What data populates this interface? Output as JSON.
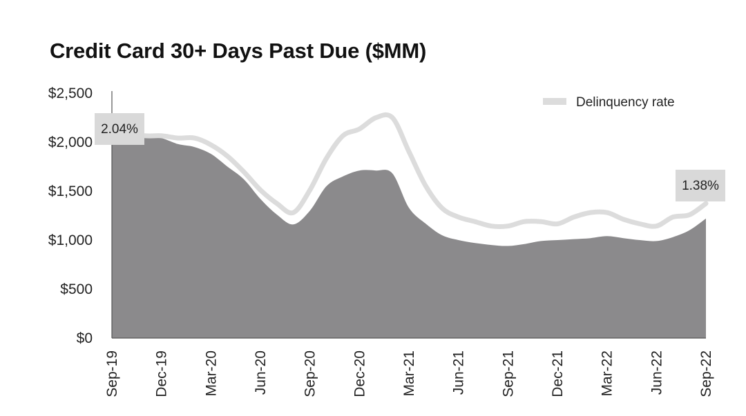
{
  "chart_data": {
    "type": "area",
    "title": "Credit Card 30+ Days Past Due ($MM)",
    "ylabel": "",
    "xlabel": "",
    "ylim": [
      0,
      2500
    ],
    "y_ticks": [
      "$0",
      "$500",
      "$1,000",
      "$1,500",
      "$2,000",
      "$2,500"
    ],
    "y_tick_values": [
      0,
      500,
      1000,
      1500,
      2000,
      2500
    ],
    "x_tick_labels": [
      "Sep-19",
      "Dec-19",
      "Mar-20",
      "Jun-20",
      "Sep-20",
      "Dec-20",
      "Mar-21",
      "Jun-21",
      "Sep-21",
      "Dec-21",
      "Mar-22",
      "Jun-22",
      "Sep-22"
    ],
    "series": [
      {
        "kind": "area",
        "months": [
          "Sep-19",
          "Oct-19",
          "Nov-19",
          "Dec-19",
          "Jan-20",
          "Feb-20",
          "Mar-20",
          "Apr-20",
          "May-20",
          "Jun-20",
          "Jul-20",
          "Aug-20",
          "Sep-20",
          "Oct-20",
          "Nov-20",
          "Dec-20",
          "Jan-21",
          "Feb-21",
          "Mar-21",
          "Apr-21",
          "May-21",
          "Jun-21",
          "Jul-21",
          "Aug-21",
          "Sep-21",
          "Oct-21",
          "Nov-21",
          "Dec-21",
          "Jan-22",
          "Feb-22",
          "Mar-22",
          "Apr-22",
          "May-22",
          "Jun-22",
          "Jul-22",
          "Aug-22",
          "Sep-22"
        ],
        "values": [
          2010,
          2040,
          2050,
          2040,
          1980,
          1950,
          1880,
          1750,
          1620,
          1420,
          1260,
          1160,
          1300,
          1550,
          1650,
          1710,
          1710,
          1680,
          1330,
          1170,
          1050,
          1000,
          970,
          950,
          940,
          960,
          990,
          1000,
          1010,
          1020,
          1040,
          1020,
          1000,
          990,
          1030,
          1100,
          1220
        ]
      },
      {
        "name": "Delinquency rate",
        "kind": "line",
        "months": [
          "Sep-19",
          "Oct-19",
          "Nov-19",
          "Dec-19",
          "Jan-20",
          "Feb-20",
          "Mar-20",
          "Apr-20",
          "May-20",
          "Jun-20",
          "Jul-20",
          "Aug-20",
          "Sep-20",
          "Oct-20",
          "Nov-20",
          "Dec-20",
          "Jan-21",
          "Feb-21",
          "Mar-21",
          "Apr-21",
          "May-21",
          "Jun-21",
          "Jul-21",
          "Aug-21",
          "Sep-21",
          "Oct-21",
          "Nov-21",
          "Dec-21",
          "Jan-22",
          "Feb-22",
          "Mar-22",
          "Apr-22",
          "May-22",
          "Jun-22",
          "Jul-22",
          "Aug-22",
          "Sep-22"
        ],
        "values": [
          2.04,
          2.0,
          1.98,
          1.98,
          1.96,
          1.96,
          1.9,
          1.8,
          1.66,
          1.5,
          1.38,
          1.3,
          1.5,
          1.78,
          1.98,
          2.04,
          2.14,
          2.14,
          1.84,
          1.54,
          1.34,
          1.26,
          1.22,
          1.18,
          1.18,
          1.22,
          1.22,
          1.2,
          1.26,
          1.3,
          1.3,
          1.24,
          1.2,
          1.18,
          1.26,
          1.28,
          1.38
        ]
      }
    ],
    "annotations": [
      {
        "text": "2.04%",
        "month": "Sep-19"
      },
      {
        "text": "1.38%",
        "month": "Sep-22"
      }
    ],
    "legend": {
      "position": "top-right",
      "entries": [
        "Delinquency rate"
      ]
    },
    "grid": false,
    "colors": {
      "area": "#8b8a8c",
      "line": "#dcdcdc",
      "callout_bg": "#d9d9d9"
    }
  }
}
